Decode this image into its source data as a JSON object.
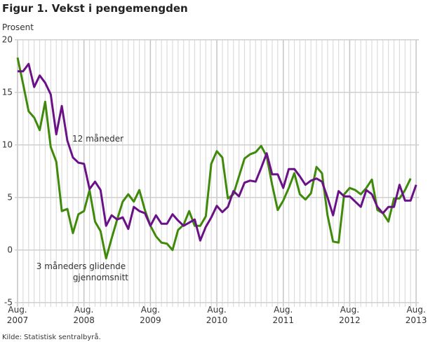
{
  "chart_data": {
    "type": "line",
    "title": "Figur 1. Vekst i pengemengden",
    "ylabel": "Prosent",
    "source": "Kilde: Statistisk sentralbyrå.",
    "ylim": [
      -5,
      20
    ],
    "yticks": [
      -5,
      0,
      5,
      10,
      15,
      20
    ],
    "x_start": "Aug. 2007",
    "x_end": "Aug. 2013",
    "xtick_labels": [
      [
        "Aug.",
        "2007"
      ],
      [
        "Aug.",
        "2008"
      ],
      [
        "Aug.",
        "2009"
      ],
      [
        "Aug.",
        "2010"
      ],
      [
        "Aug.",
        "2011"
      ],
      [
        "Aug.",
        "2012"
      ],
      [
        "Aug.",
        "2013"
      ]
    ],
    "grid": true,
    "series": [
      {
        "name": "12 måneder",
        "label_lines": [
          "12 måneder"
        ],
        "color": "#6b1188",
        "values": [
          17.0,
          17.0,
          17.7,
          15.5,
          16.6,
          15.9,
          14.8,
          11.0,
          13.7,
          10.4,
          8.8,
          8.3,
          8.2,
          5.8,
          6.5,
          5.7,
          2.3,
          3.3,
          2.9,
          3.1,
          2.0,
          4.1,
          3.7,
          3.5,
          2.3,
          3.3,
          2.5,
          2.5,
          3.4,
          2.8,
          2.3,
          2.6,
          2.9,
          0.9,
          2.2,
          3.1,
          4.2,
          3.6,
          4.1,
          5.6,
          5.1,
          6.4,
          6.6,
          6.5,
          7.8,
          9.2,
          7.2,
          7.2,
          5.9,
          7.7,
          7.7,
          7.0,
          6.2,
          6.6,
          6.8,
          6.5,
          5.0,
          3.3,
          5.6,
          5.1,
          5.1,
          4.6,
          4.1,
          5.7,
          5.3,
          4.1,
          3.5,
          4.1,
          4.1,
          6.2,
          4.7,
          4.7,
          6.2
        ]
      },
      {
        "name": "3 måneders glidende gjennomsnitt",
        "label_lines": [
          "3 måneders glidende",
          "gjennomsnitt"
        ],
        "color": "#3f8a0a",
        "values": [
          18.3,
          15.8,
          13.2,
          12.6,
          11.4,
          14.1,
          9.8,
          8.4,
          3.7,
          3.9,
          1.6,
          3.4,
          3.7,
          5.7,
          2.7,
          1.8,
          -0.8,
          1.1,
          2.9,
          4.6,
          5.3,
          4.6,
          5.7,
          3.8,
          2.3,
          1.3,
          0.7,
          0.6,
          0.0,
          1.9,
          2.4,
          3.7,
          2.3,
          2.3,
          3.2,
          8.2,
          9.4,
          8.8,
          4.9,
          5.3,
          7.0,
          8.7,
          9.1,
          9.3,
          9.9,
          8.9,
          6.2,
          3.8,
          4.7,
          5.9,
          7.3,
          5.3,
          4.8,
          5.4,
          7.9,
          7.3,
          3.3,
          0.8,
          0.7,
          5.3,
          5.9,
          5.7,
          5.3,
          5.9,
          6.7,
          3.8,
          3.5,
          2.7,
          4.9,
          4.9,
          5.7,
          6.8
        ]
      }
    ]
  }
}
